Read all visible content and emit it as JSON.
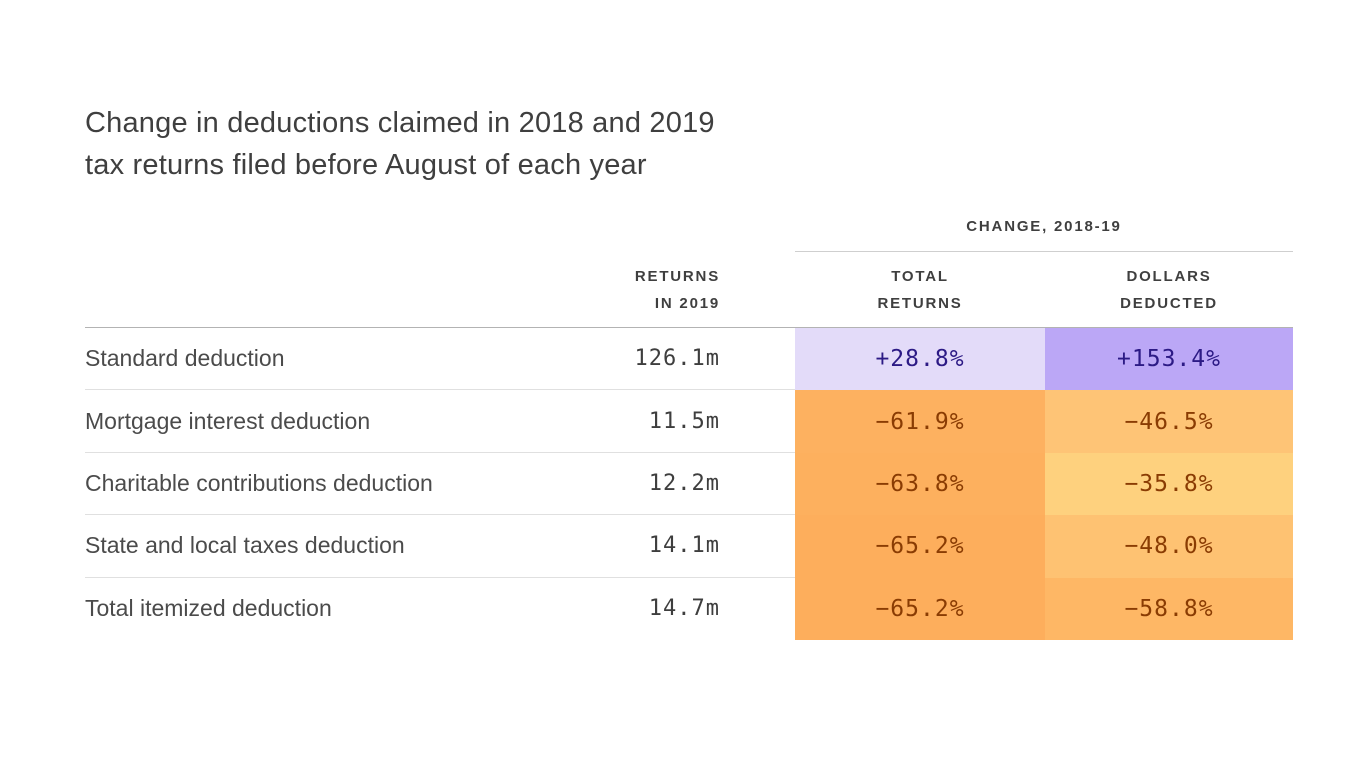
{
  "title": {
    "line1": "Change in deductions claimed in 2018 and 2019",
    "line2": "tax returns filed before August of each year"
  },
  "table": {
    "group_header": "CHANGE, 2018-19",
    "headers": {
      "returns": "RETURNS\nIN 2019",
      "total_returns": "TOTAL\nRETURNS",
      "dollars_deducted": "DOLLARS\nDEDUCTED"
    },
    "rows": [
      {
        "label": "Standard deduction",
        "returns": "126.1m",
        "total": {
          "text": "+28.8%",
          "bg": "#e3dbf9",
          "fg": "#2c1a85"
        },
        "dollars": {
          "text": "+153.4%",
          "bg": "#bba7f6",
          "fg": "#2c1a85"
        }
      },
      {
        "label": "Mortgage interest deduction",
        "returns": "11.5m",
        "total": {
          "text": "−61.9%",
          "bg": "#fdb160",
          "fg": "#8a3c03"
        },
        "dollars": {
          "text": "−46.5%",
          "bg": "#fec476",
          "fg": "#8a3c03"
        }
      },
      {
        "label": "Charitable contributions deduction",
        "returns": "12.2m",
        "total": {
          "text": "−63.8%",
          "bg": "#fdb05e",
          "fg": "#8a3c03"
        },
        "dollars": {
          "text": "−35.8%",
          "bg": "#fed17e",
          "fg": "#8a3c03"
        }
      },
      {
        "label": "State and local taxes deduction",
        "returns": "14.1m",
        "total": {
          "text": "−65.2%",
          "bg": "#fdae5c",
          "fg": "#8a3c03"
        },
        "dollars": {
          "text": "−48.0%",
          "bg": "#fec272",
          "fg": "#8a3c03"
        }
      },
      {
        "label": "Total itemized deduction",
        "returns": "14.7m",
        "total": {
          "text": "−65.2%",
          "bg": "#fdae5c",
          "fg": "#8a3c03"
        },
        "dollars": {
          "text": "−58.8%",
          "bg": "#feb765",
          "fg": "#8a3c03"
        }
      }
    ]
  },
  "chart_data": {
    "type": "table",
    "title": "Change in deductions claimed in 2018 and 2019 tax returns filed before August of each year",
    "row_labels": [
      "Standard deduction",
      "Mortgage interest deduction",
      "Charitable contributions deduction",
      "State and local taxes deduction",
      "Total itemized deduction"
    ],
    "columns": [
      "Returns in 2019 (millions)",
      "Change 2018-19, total returns (%)",
      "Change 2018-19, dollars deducted (%)"
    ],
    "returns_in_2019_millions": [
      126.1,
      11.5,
      12.2,
      14.1,
      14.7
    ],
    "change_total_returns_pct": [
      28.8,
      -61.9,
      -63.8,
      -65.2,
      -65.2
    ],
    "change_dollars_deducted_pct": [
      153.4,
      -46.5,
      -35.8,
      -48.0,
      -58.8
    ],
    "colors": {
      "positive_light": "#e3dbf9",
      "positive_dark": "#bba7f6",
      "positive_text": "#2c1a85",
      "negative_scale": [
        "#fdae5c",
        "#fdb05e",
        "#fdb160",
        "#feb765",
        "#fec272",
        "#fec476",
        "#fed17e"
      ],
      "negative_text": "#8a3c03"
    }
  }
}
